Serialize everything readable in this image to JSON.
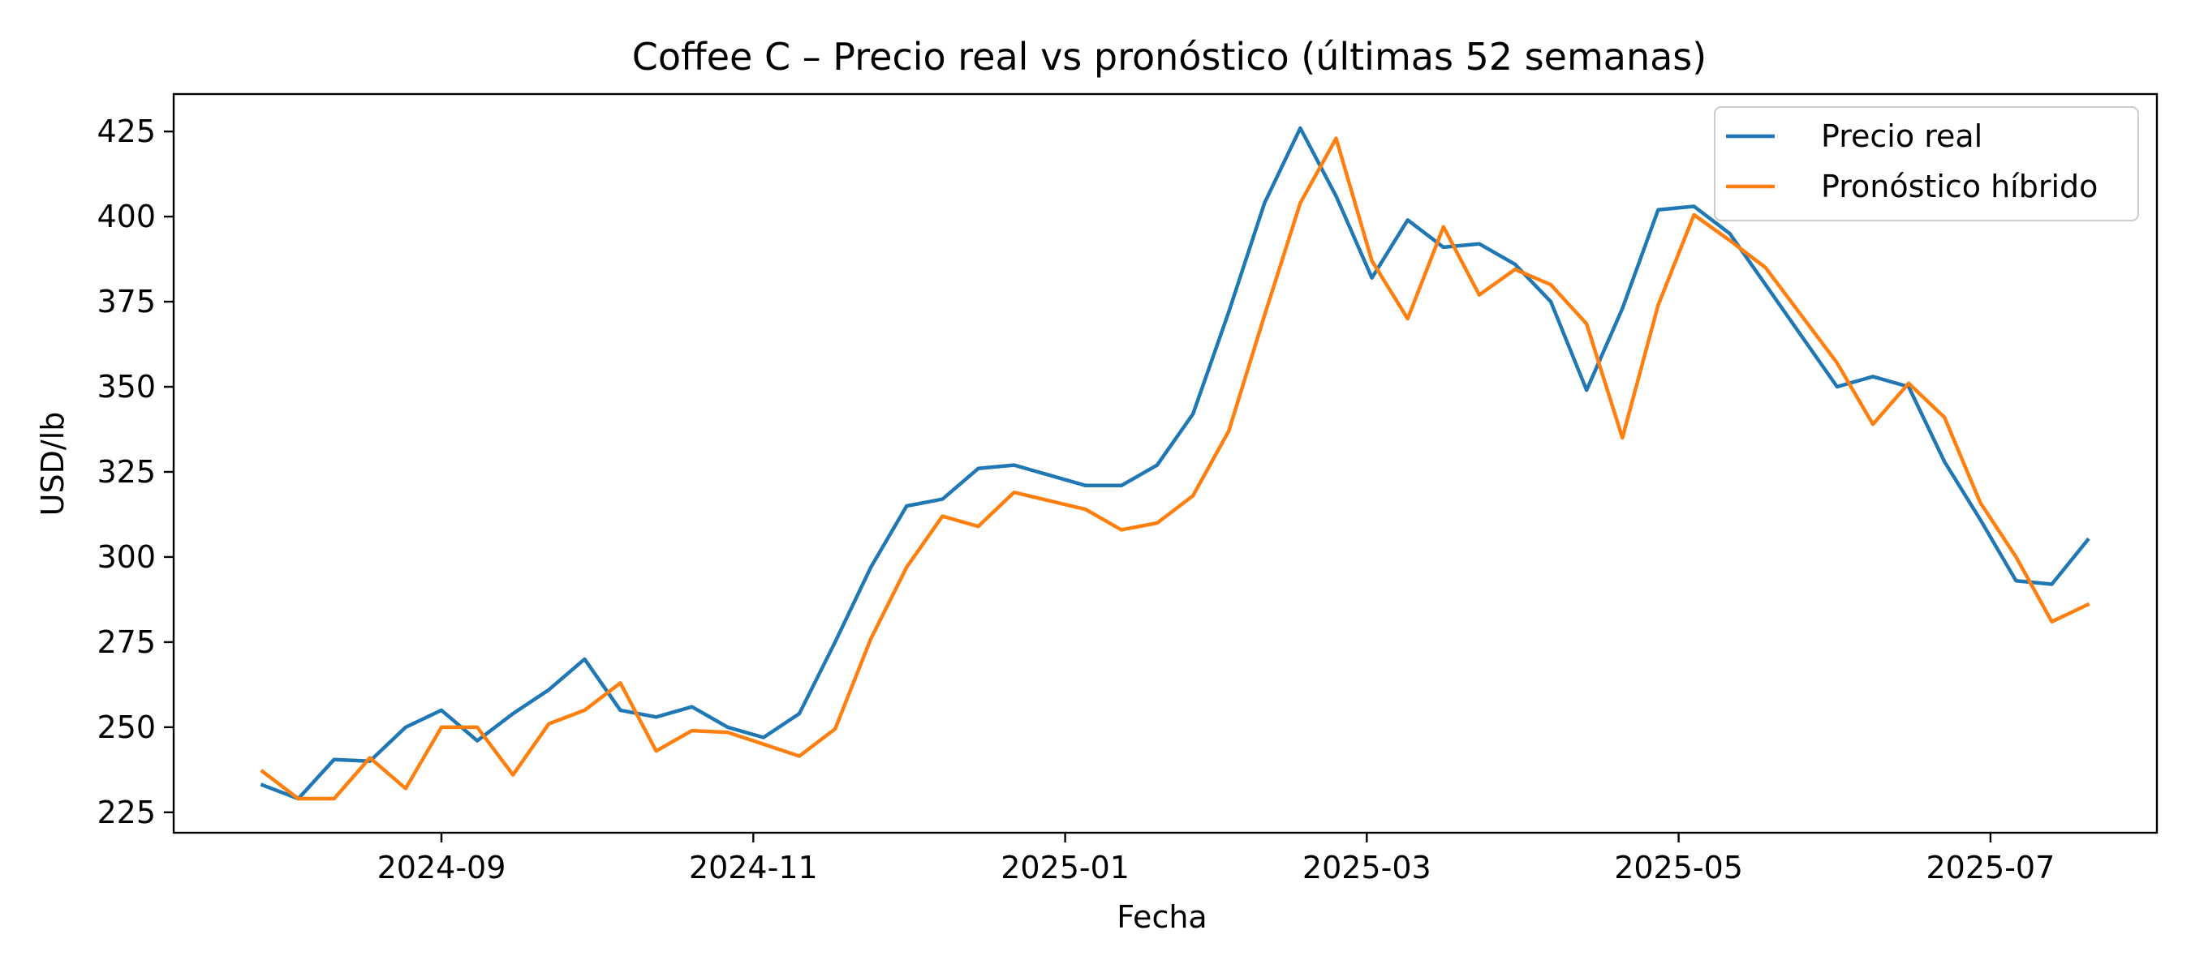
{
  "chart_data": {
    "type": "line",
    "title": "Coffee C – Precio real vs pronóstico (últimas 52 semanas)",
    "xlabel": "Fecha",
    "ylabel": "USD/lb",
    "x_tick_labels": [
      "2024-09",
      "2024-11",
      "2025-01",
      "2025-03",
      "2025-05",
      "2025-07"
    ],
    "y_ticks": [
      225,
      250,
      275,
      300,
      325,
      350,
      375,
      400,
      425
    ],
    "ylim": [
      219,
      436
    ],
    "legend_position": "top-right",
    "grid": false,
    "x": [
      "2024-07-28",
      "2024-08-04",
      "2024-08-11",
      "2024-08-18",
      "2024-08-25",
      "2024-09-01",
      "2024-09-08",
      "2024-09-15",
      "2024-09-22",
      "2024-09-29",
      "2024-10-06",
      "2024-10-13",
      "2024-10-20",
      "2024-10-27",
      "2024-11-03",
      "2024-11-10",
      "2024-11-17",
      "2024-11-24",
      "2024-12-01",
      "2024-12-08",
      "2024-12-15",
      "2024-12-22",
      "2024-12-29",
      "2025-01-05",
      "2025-01-12",
      "2025-01-19",
      "2025-01-26",
      "2025-02-02",
      "2025-02-09",
      "2025-02-16",
      "2025-02-23",
      "2025-03-02",
      "2025-03-09",
      "2025-03-16",
      "2025-03-23",
      "2025-03-30",
      "2025-04-06",
      "2025-04-13",
      "2025-04-20",
      "2025-04-27",
      "2025-05-04",
      "2025-05-11",
      "2025-05-18",
      "2025-05-25",
      "2025-06-01",
      "2025-06-08",
      "2025-06-15",
      "2025-06-22",
      "2025-06-29",
      "2025-07-06",
      "2025-07-13",
      "2025-07-20"
    ],
    "series": [
      {
        "name": "Precio real",
        "color": "#1f77b4",
        "values": [
          233,
          229,
          240.5,
          240,
          250,
          255,
          246,
          254,
          261,
          270,
          255,
          253,
          256,
          250,
          247,
          254,
          275,
          297,
          315,
          317,
          326,
          327,
          324,
          321,
          321,
          327,
          342,
          372,
          404,
          426,
          406,
          382,
          399,
          391,
          392,
          386,
          375,
          349,
          373,
          402,
          403,
          395,
          380,
          365,
          350,
          353,
          350,
          328,
          311,
          293,
          292,
          305
        ]
      },
      {
        "name": "Pronóstico híbrido",
        "color": "#ff7f0e",
        "values": [
          237,
          229,
          229,
          241,
          232,
          250,
          250,
          236,
          251,
          255,
          263,
          243,
          249,
          248.5,
          245,
          241.5,
          249.5,
          276,
          297,
          312,
          309,
          319,
          316.5,
          314,
          308,
          310,
          318,
          337,
          371,
          404,
          423,
          387,
          370,
          397,
          377,
          384.5,
          380,
          368.5,
          335,
          374,
          400.5,
          393,
          385,
          371,
          357,
          339,
          351,
          341,
          316,
          300,
          281,
          286
        ]
      }
    ]
  }
}
